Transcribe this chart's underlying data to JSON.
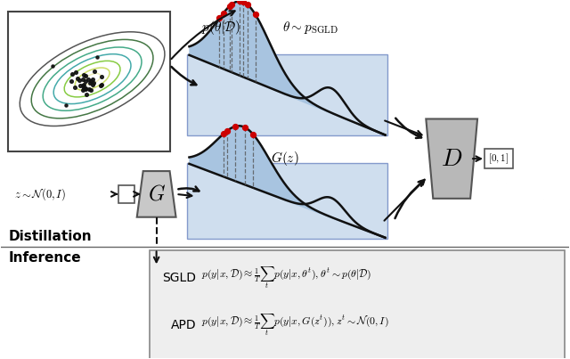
{
  "bg_color": "#ffffff",
  "top_label1": "$p(\\theta|\\mathcal{D})$",
  "top_label2": "$\\theta \\sim p_{\\mathrm{SGLD}}$",
  "gz_label": "$G(z)$",
  "z_label": "$z \\sim \\mathcal{N}(0, I)$",
  "D_label": "$D$",
  "output_label": "$[0, 1]$",
  "distillation_label": "Distillation",
  "inference_label": "Inference",
  "sgld_label": "SGLD",
  "apd_label": "APD",
  "sgld_eq": "$p(y|x, \\mathcal{D}) \\approx \\frac{1}{T}\\sum_{t} p(y|x, \\theta^t), \\theta^t \\sim p(\\theta|\\mathcal{D})$",
  "apd_eq": "$p(y|x, \\mathcal{D}) \\approx \\frac{1}{T}\\sum_{t} p(y|x, G(z^t)), z^t \\sim \\mathcal{N}(0, I)$",
  "blue_fill": "#a8c4e0",
  "red_dot": "#cc0000",
  "arrow_color": "#111111"
}
